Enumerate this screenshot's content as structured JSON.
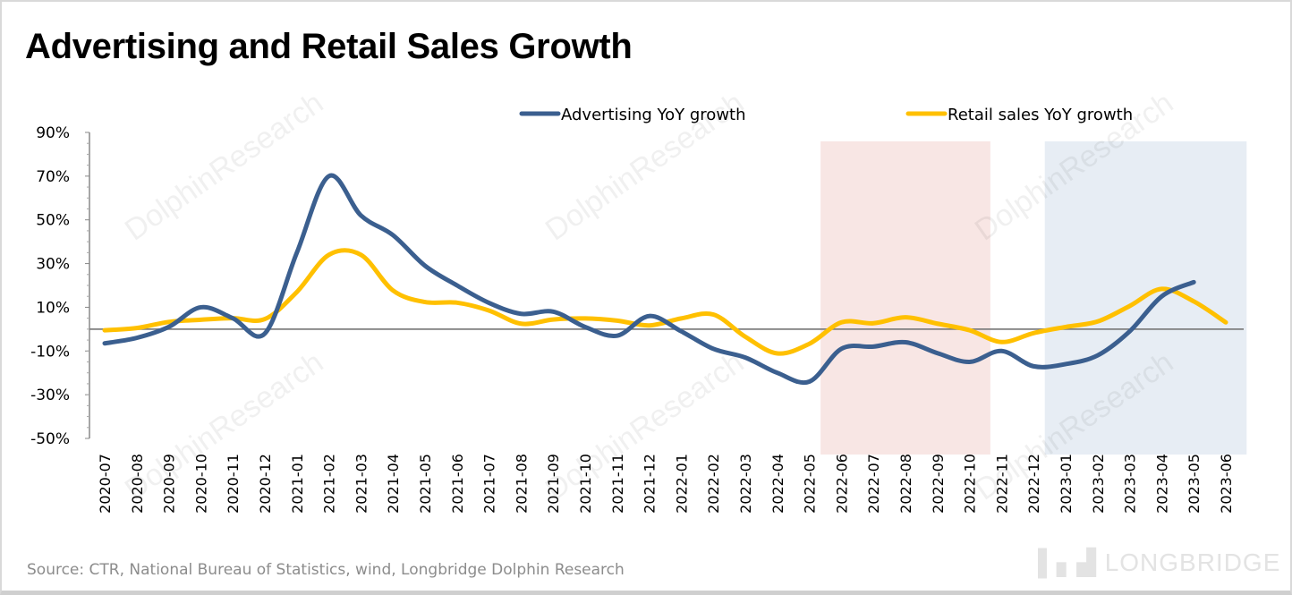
{
  "chart_data": {
    "type": "line",
    "title": "Advertising and Retail Sales Growth",
    "categories": [
      "2020-07",
      "2020-08",
      "2020-09",
      "2020-10",
      "2020-11",
      "2020-12",
      "2021-01",
      "2021-02",
      "2021-03",
      "2021-04",
      "2021-05",
      "2021-06",
      "2021-07",
      "2021-08",
      "2021-09",
      "2021-10",
      "2021-11",
      "2021-12",
      "2022-01",
      "2022-02",
      "2022-03",
      "2022-04",
      "2022-05",
      "2022-06",
      "2022-07",
      "2022-08",
      "2022-09",
      "2022-10",
      "2022-11",
      "2022-12",
      "2023-01",
      "2023-02",
      "2023-03",
      "2023-04",
      "2023-05",
      "2023-06"
    ],
    "series": [
      {
        "name": "Advertising YoY growth",
        "color": "#3b5f8f",
        "values": [
          -6.5,
          -4,
          1,
          10,
          5,
          -2,
          35,
          70,
          52,
          43,
          29,
          20,
          12,
          7,
          8,
          1,
          -3,
          6,
          -1,
          -9,
          -13,
          -20,
          -24,
          -9,
          -8,
          -6,
          -11,
          -15,
          -10,
          -17,
          -16,
          -12,
          -1,
          15,
          21.5,
          null
        ]
      },
      {
        "name": "Retail sales YoY growth",
        "color": "#ffc000",
        "values": [
          -0.5,
          0.5,
          3.3,
          4.3,
          5,
          4.6,
          17,
          34,
          34,
          17.7,
          12.4,
          12.1,
          8.5,
          2.5,
          4.4,
          4.9,
          3.9,
          1.7,
          4.9,
          6.7,
          -3.5,
          -11.1,
          -6.7,
          3.1,
          2.7,
          5.4,
          2.5,
          -0.5,
          -5.9,
          -1.8,
          1,
          3.5,
          10.6,
          18.4,
          12.7,
          3.1
        ]
      }
    ],
    "ylim": [
      -50,
      90
    ],
    "yticks": [
      "90%",
      "70%",
      "50%",
      "30%",
      "10%",
      "-10%",
      "-30%",
      "-50%"
    ],
    "ytick_values": [
      90,
      70,
      50,
      30,
      10,
      -10,
      -30,
      -50
    ],
    "xlabel": "",
    "ylabel": "",
    "grid": false,
    "legend": "top-right",
    "shaded_periods": [
      {
        "from": "2022-06",
        "to": "2022-10",
        "color": "#f8e6e4"
      },
      {
        "from": "2023-01",
        "to": "2023-06",
        "color": "#e7edf4"
      }
    ]
  },
  "source": "Source: CTR, National Bureau of Statistics, wind, Longbridge Dolphin Research",
  "watermark": {
    "logo": "LONGBRIDGE",
    "text": "DolphinResearch"
  }
}
